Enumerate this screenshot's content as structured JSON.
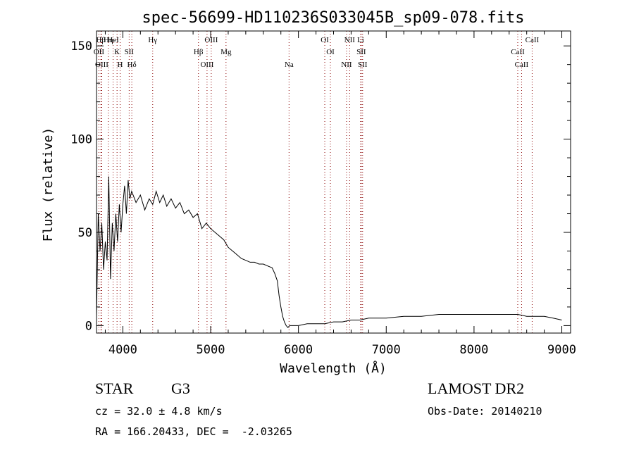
{
  "chart_data": {
    "type": "line",
    "title": "spec-56699-HD110236S033045B_sp09-078.fits",
    "xlabel": "Wavelength (Å)",
    "ylabel": "Flux (relative)",
    "xlim": [
      3700,
      9100
    ],
    "ylim": [
      -4,
      158
    ],
    "xticks": [
      4000,
      5000,
      6000,
      7000,
      8000,
      9000
    ],
    "yticks": [
      0,
      50,
      100,
      150
    ],
    "x": [
      3700,
      3720,
      3740,
      3760,
      3780,
      3800,
      3820,
      3840,
      3860,
      3880,
      3900,
      3920,
      3940,
      3960,
      3980,
      4000,
      4020,
      4040,
      4060,
      4080,
      4100,
      4150,
      4200,
      4250,
      4300,
      4340,
      4380,
      4420,
      4460,
      4500,
      4550,
      4600,
      4650,
      4700,
      4750,
      4800,
      4850,
      4900,
      4950,
      5000,
      5050,
      5100,
      5150,
      5200,
      5250,
      5300,
      5350,
      5400,
      5450,
      5500,
      5550,
      5600,
      5650,
      5700,
      5730,
      5760,
      5780,
      5800,
      5820,
      5840,
      5860,
      5880,
      5900,
      5950,
      6000,
      6100,
      6200,
      6300,
      6400,
      6500,
      6600,
      6700,
      6800,
      6900,
      7000,
      7200,
      7400,
      7600,
      7800,
      8000,
      8200,
      8400,
      8500,
      8600,
      8700,
      8800,
      8900,
      9000
    ],
    "y": [
      5,
      60,
      40,
      55,
      30,
      45,
      35,
      80,
      25,
      55,
      40,
      60,
      45,
      65,
      50,
      65,
      75,
      60,
      78,
      68,
      72,
      66,
      70,
      62,
      68,
      65,
      72,
      66,
      70,
      64,
      68,
      63,
      66,
      60,
      62,
      58,
      60,
      52,
      55,
      52,
      50,
      48,
      46,
      42,
      40,
      38,
      36,
      35,
      34,
      34,
      33,
      33,
      32,
      31,
      28,
      24,
      16,
      10,
      5,
      2,
      0,
      -1,
      0,
      0,
      0,
      1,
      1,
      1,
      2,
      2,
      3,
      3,
      4,
      4,
      4,
      5,
      5,
      6,
      6,
      6,
      6,
      6,
      6,
      5,
      5,
      5,
      4,
      3
    ],
    "spectral_lines": [
      {
        "label": "Hβ",
        "x": 3750
      },
      {
        "label": "OII",
        "x": 3727
      },
      {
        "label": "OIII",
        "x": 3760
      },
      {
        "label": "Hη",
        "x": 3835
      },
      {
        "label": "K",
        "x": 3934
      },
      {
        "label": "H",
        "x": 3969
      },
      {
        "label": "HeI",
        "x": 3889
      },
      {
        "label": "SII",
        "x": 4072
      },
      {
        "label": "Hδ",
        "x": 4102
      },
      {
        "label": "Hγ",
        "x": 4340
      },
      {
        "label": "Hβ",
        "x": 4861
      },
      {
        "label": "OIII",
        "x": 4959
      },
      {
        "label": "OIII",
        "x": 5007
      },
      {
        "label": "Mg",
        "x": 5175
      },
      {
        "label": "Na",
        "x": 5893
      },
      {
        "label": "OI",
        "x": 6300
      },
      {
        "label": "OI",
        "x": 6364
      },
      {
        "label": "NII",
        "x": 6548
      },
      {
        "label": "NII",
        "x": 6583
      },
      {
        "label": "SII",
        "x": 6716
      },
      {
        "label": "SII",
        "x": 6731
      },
      {
        "label": "Li",
        "x": 6708
      },
      {
        "label": "CaII",
        "x": 8498
      },
      {
        "label": "CaII",
        "x": 8542
      },
      {
        "label": "CaII",
        "x": 8662
      }
    ],
    "line_color": "#000000",
    "marker_color": "#8b0000",
    "grid": false
  },
  "info": {
    "class": "STAR",
    "subclass": "G3",
    "survey": "LAMOST DR2",
    "cz": "cz = 32.0 ± 4.8 km/s",
    "obs_date": "Obs-Date: 20140210",
    "radec": "RA = 166.20433, DEC =  -2.03265"
  }
}
